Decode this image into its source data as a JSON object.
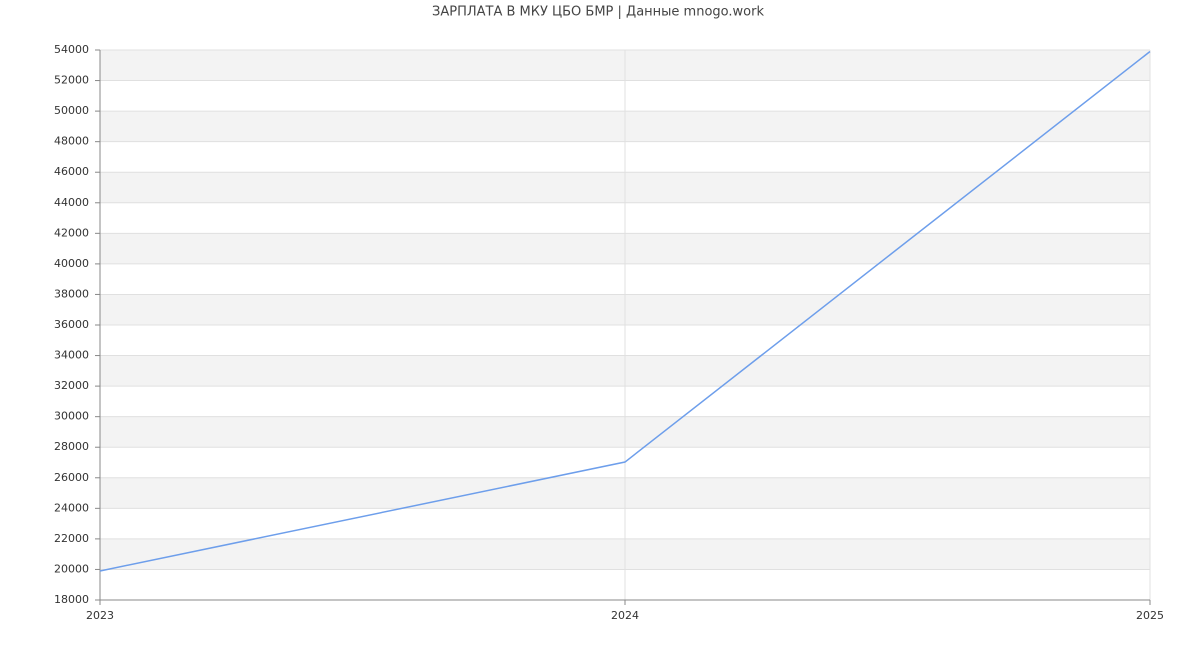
{
  "chart_data": {
    "type": "line",
    "title": "ЗАРПЛАТА В МКУ ЦБО БМР | Данные mnogo.work",
    "x": [
      2023,
      2024,
      2025
    ],
    "series": [
      {
        "name": "Зарплата",
        "color": "#6d9eeb",
        "values": [
          19900,
          27030,
          53900
        ]
      }
    ],
    "xlim": [
      2023,
      2025
    ],
    "xticks": [
      2023,
      2024,
      2025
    ],
    "ylim": [
      18000,
      54000
    ],
    "yticks": [
      18000,
      20000,
      22000,
      24000,
      26000,
      28000,
      30000,
      32000,
      34000,
      36000,
      38000,
      40000,
      42000,
      44000,
      46000,
      48000,
      50000,
      52000,
      54000
    ],
    "grid": true
  }
}
